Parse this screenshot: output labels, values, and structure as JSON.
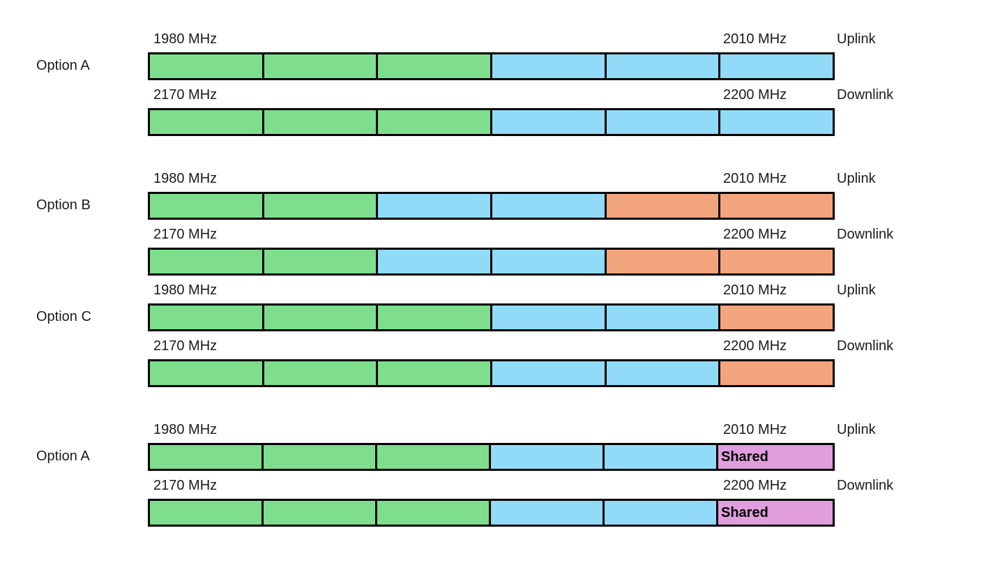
{
  "palette": {
    "green": "#7EDE8D",
    "blue": "#92DBF8",
    "orange": "#F2A57D",
    "purple": "#E09EDE",
    "border": "#000000"
  },
  "sections": [
    {
      "option": "Option A",
      "rows": [
        {
          "start": "1980 MHz",
          "end": "2010 MHz",
          "link": "Uplink",
          "segments": [
            {
              "color": "green"
            },
            {
              "color": "green"
            },
            {
              "color": "green"
            },
            {
              "color": "blue"
            },
            {
              "color": "blue"
            },
            {
              "color": "blue"
            }
          ]
        },
        {
          "start": "2170 MHz",
          "end": "2200 MHz",
          "link": "Downlink",
          "segments": [
            {
              "color": "green"
            },
            {
              "color": "green"
            },
            {
              "color": "green"
            },
            {
              "color": "blue"
            },
            {
              "color": "blue"
            },
            {
              "color": "blue"
            }
          ]
        }
      ]
    },
    {
      "option": "Option B",
      "rows": [
        {
          "start": "1980 MHz",
          "end": "2010 MHz",
          "link": "Uplink",
          "segments": [
            {
              "color": "green"
            },
            {
              "color": "green"
            },
            {
              "color": "blue"
            },
            {
              "color": "blue"
            },
            {
              "color": "orange"
            },
            {
              "color": "orange"
            }
          ]
        },
        {
          "start": "2170 MHz",
          "end": "2200 MHz",
          "link": "Downlink",
          "segments": [
            {
              "color": "green"
            },
            {
              "color": "green"
            },
            {
              "color": "blue"
            },
            {
              "color": "blue"
            },
            {
              "color": "orange"
            },
            {
              "color": "orange"
            }
          ]
        }
      ]
    },
    {
      "option": "Option C",
      "rows": [
        {
          "start": "1980 MHz",
          "end": "2010 MHz",
          "link": "Uplink",
          "segments": [
            {
              "color": "green"
            },
            {
              "color": "green"
            },
            {
              "color": "green"
            },
            {
              "color": "blue"
            },
            {
              "color": "blue"
            },
            {
              "color": "orange"
            }
          ]
        },
        {
          "start": "2170 MHz",
          "end": "2200 MHz",
          "link": "Downlink",
          "segments": [
            {
              "color": "green"
            },
            {
              "color": "green"
            },
            {
              "color": "green"
            },
            {
              "color": "blue"
            },
            {
              "color": "blue"
            },
            {
              "color": "orange"
            }
          ]
        }
      ]
    },
    {
      "option": "Option A",
      "rows": [
        {
          "start": "1980 MHz",
          "end": "2010 MHz",
          "link": "Uplink",
          "segments": [
            {
              "color": "green"
            },
            {
              "color": "green"
            },
            {
              "color": "green"
            },
            {
              "color": "blue"
            },
            {
              "color": "blue"
            },
            {
              "color": "purple",
              "label": "Shared"
            }
          ]
        },
        {
          "start": "2170 MHz",
          "end": "2200 MHz",
          "link": "Downlink",
          "segments": [
            {
              "color": "green"
            },
            {
              "color": "green"
            },
            {
              "color": "green"
            },
            {
              "color": "blue"
            },
            {
              "color": "blue"
            },
            {
              "color": "purple",
              "label": "Shared"
            }
          ]
        }
      ]
    }
  ]
}
